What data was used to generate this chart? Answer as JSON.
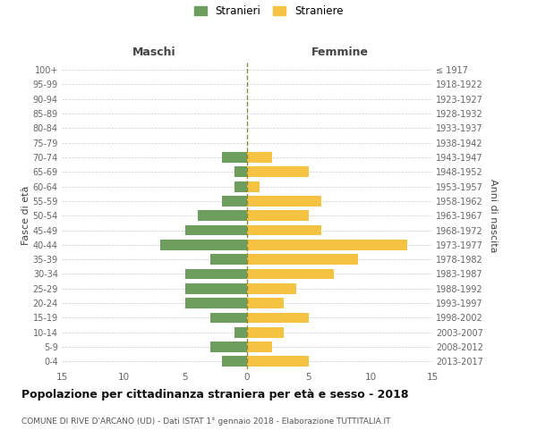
{
  "age_groups": [
    "100+",
    "95-99",
    "90-94",
    "85-89",
    "80-84",
    "75-79",
    "70-74",
    "65-69",
    "60-64",
    "55-59",
    "50-54",
    "45-49",
    "40-44",
    "35-39",
    "30-34",
    "25-29",
    "20-24",
    "15-19",
    "10-14",
    "5-9",
    "0-4"
  ],
  "birth_years": [
    "≤ 1917",
    "1918-1922",
    "1923-1927",
    "1928-1932",
    "1933-1937",
    "1938-1942",
    "1943-1947",
    "1948-1952",
    "1953-1957",
    "1958-1962",
    "1963-1967",
    "1968-1972",
    "1973-1977",
    "1978-1982",
    "1983-1987",
    "1988-1992",
    "1993-1997",
    "1998-2002",
    "2003-2007",
    "2008-2012",
    "2013-2017"
  ],
  "maschi": [
    0,
    0,
    0,
    0,
    0,
    0,
    2,
    1,
    1,
    2,
    4,
    5,
    7,
    3,
    5,
    5,
    5,
    3,
    1,
    3,
    2
  ],
  "femmine": [
    0,
    0,
    0,
    0,
    0,
    0,
    2,
    5,
    1,
    6,
    5,
    6,
    13,
    9,
    7,
    4,
    3,
    5,
    3,
    2,
    5
  ],
  "color_maschi": "#6d9e5e",
  "color_femmine": "#f5c242",
  "title": "Popolazione per cittadinanza straniera per età e sesso - 2018",
  "subtitle": "COMUNE DI RIVE D'ARCANO (UD) - Dati ISTAT 1° gennaio 2018 - Elaborazione TUTTITALIA.IT",
  "xlabel_left": "Maschi",
  "xlabel_right": "Femmine",
  "ylabel_left": "Fasce di età",
  "ylabel_right": "Anni di nascita",
  "legend_maschi": "Stranieri",
  "legend_femmine": "Straniere",
  "xlim": 15,
  "background_color": "#ffffff",
  "grid_color": "#cccccc",
  "dashed_line_color": "#8a8a40"
}
